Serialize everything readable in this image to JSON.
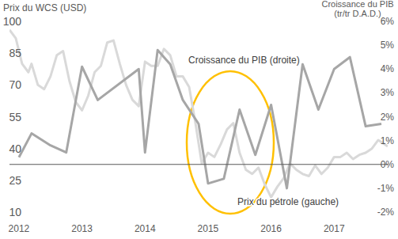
{
  "chart_data": {
    "type": "line",
    "y_label": "Prix du WCS (USD)",
    "y2_label": [
      "Croissance du PIB",
      "(tr/tr  D.A.D.)"
    ],
    "annotations": [
      "Croissance du PIB (droite)",
      "Prix du pétrole (gauche)"
    ],
    "xlim": [
      2011.85,
      2017.85
    ],
    "xticks": [
      2012,
      2013,
      2014,
      2015,
      2016,
      2017
    ],
    "ylim": [
      10,
      100
    ],
    "yticks": [
      10,
      25,
      40,
      55,
      70,
      85,
      100
    ],
    "y2lim": [
      -2,
      6
    ],
    "y2ticks": [
      {
        "value": -2,
        "label": "-2%"
      },
      {
        "value": -1,
        "label": "-1%"
      },
      {
        "value": 0,
        "label": "0%"
      },
      {
        "value": 1,
        "label": "1%"
      },
      {
        "value": 2,
        "label": "2%"
      },
      {
        "value": 3,
        "label": "3%"
      },
      {
        "value": 4,
        "label": "4%"
      },
      {
        "value": 5,
        "label": "5%"
      },
      {
        "value": 6,
        "label": "6%"
      }
    ],
    "grid": false,
    "series": [
      {
        "name": "Croissance du PIB (droite)",
        "color": "#a6a6a6",
        "axis": "y2",
        "x": [
          2012.0,
          2012.2,
          2012.5,
          2012.75,
          2013.0,
          2013.25,
          2013.9,
          2014.0,
          2014.2,
          2014.4,
          2014.6,
          2014.85,
          2015.0,
          2015.25,
          2015.5,
          2015.75,
          2016.0,
          2016.25,
          2016.5,
          2016.75,
          2017.0,
          2017.25,
          2017.5,
          2017.75
        ],
        "values": [
          0.3,
          1.3,
          0.8,
          0.5,
          4.1,
          2.7,
          4.0,
          0.5,
          4.8,
          4.2,
          2.7,
          1.7,
          -0.8,
          -0.6,
          2.3,
          0.4,
          2.5,
          -1.0,
          4.2,
          2.3,
          4.0,
          4.5,
          1.6,
          1.7
        ]
      },
      {
        "name": "Prix du pétrole (gauche)",
        "color": "#d9d9d9",
        "x": [
          2011.85,
          2011.95,
          2012.05,
          2012.15,
          2012.2,
          2012.3,
          2012.4,
          2012.5,
          2012.6,
          2012.7,
          2012.8,
          2012.9,
          2013.0,
          2013.1,
          2013.2,
          2013.3,
          2013.4,
          2013.5,
          2013.6,
          2013.7,
          2013.8,
          2013.9,
          2014.0,
          2014.1,
          2014.2,
          2014.3,
          2014.4,
          2014.5,
          2014.6,
          2014.7,
          2014.8,
          2014.9,
          2015.0,
          2015.1,
          2015.2,
          2015.3,
          2015.4,
          2015.5,
          2015.6,
          2015.7,
          2015.8,
          2015.9,
          2016.0,
          2016.1,
          2016.2,
          2016.3,
          2016.4,
          2016.5,
          2016.6,
          2016.7,
          2016.8,
          2016.9,
          2017.0,
          2017.1,
          2017.2,
          2017.3,
          2017.4,
          2017.5,
          2017.6,
          2017.7,
          2017.8,
          2017.85
        ],
        "values": [
          96,
          92,
          80,
          76,
          80,
          70,
          68,
          74,
          84,
          86,
          72,
          62,
          58,
          65,
          76,
          79,
          90,
          91,
          80,
          70,
          63,
          60,
          81,
          79,
          79,
          87,
          84,
          74,
          74,
          69,
          52,
          33,
          38,
          36,
          42,
          49,
          52,
          38,
          30,
          28,
          31,
          23,
          17,
          22,
          26,
          33,
          30,
          28,
          27,
          32,
          28,
          31,
          36,
          36,
          38,
          35,
          37,
          38,
          40,
          44,
          42,
          41
        ]
      }
    ]
  }
}
